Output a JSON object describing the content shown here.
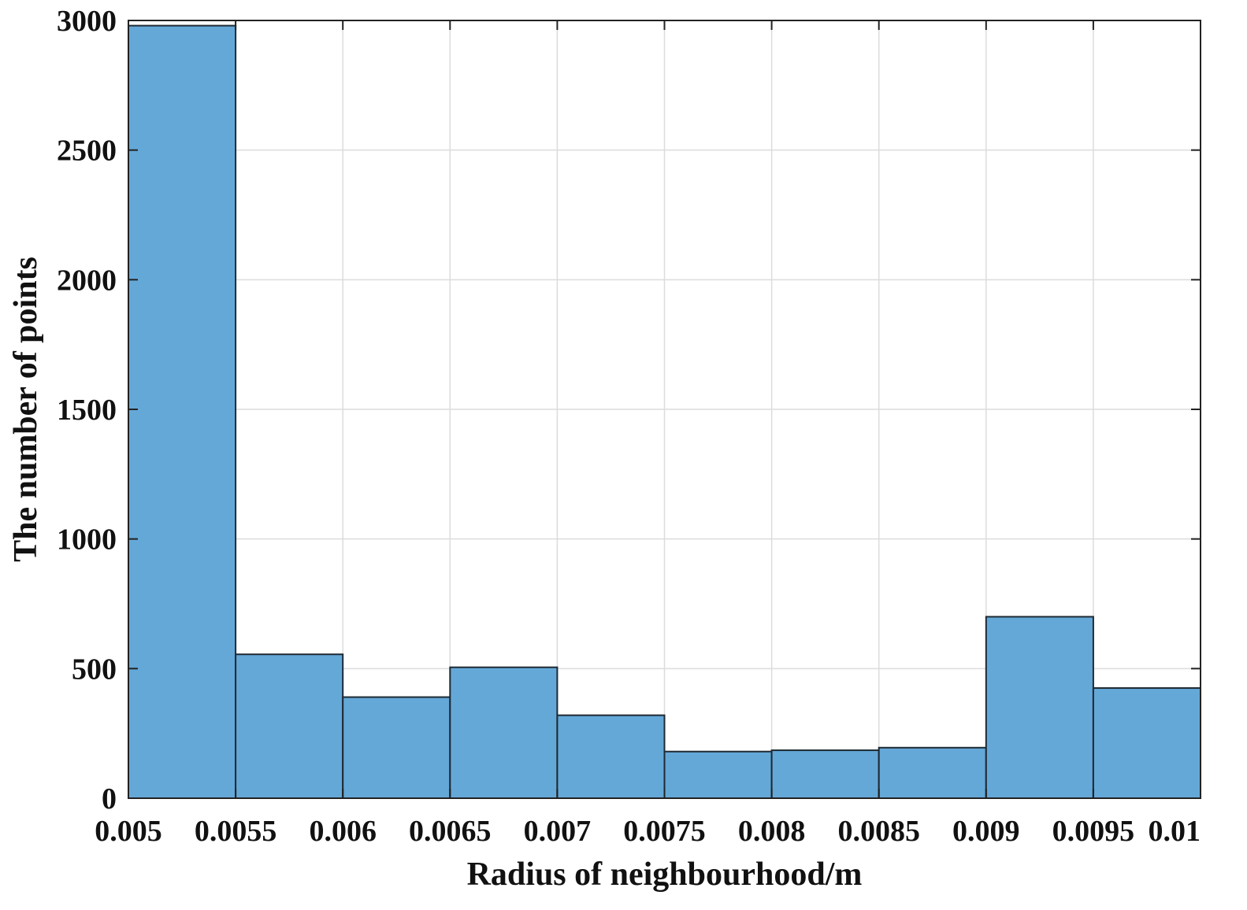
{
  "chart_data": {
    "type": "bar",
    "histogram": true,
    "xlabel": "Radius of neighbourhood/m",
    "ylabel": "The number of points",
    "xlim": [
      0.005,
      0.01
    ],
    "ylim": [
      0,
      3000
    ],
    "bin_edges": [
      0.005,
      0.0055,
      0.006,
      0.0065,
      0.007,
      0.0075,
      0.008,
      0.0085,
      0.009,
      0.0095,
      0.01
    ],
    "values": [
      2980,
      555,
      390,
      505,
      320,
      180,
      185,
      195,
      700,
      425
    ],
    "x_ticks": [
      0.005,
      0.0055,
      0.006,
      0.0065,
      0.007,
      0.0075,
      0.008,
      0.0085,
      0.009,
      0.0095,
      0.01
    ],
    "x_tick_labels": [
      "0.005",
      "0.0055",
      "0.006",
      "0.0065",
      "0.007",
      "0.0075",
      "0.008",
      "0.0085",
      "0.009",
      "0.0095",
      "0.01"
    ],
    "y_ticks": [
      0,
      500,
      1000,
      1500,
      2000,
      2500,
      3000
    ],
    "y_tick_labels": [
      "0",
      "500",
      "1000",
      "1500",
      "2000",
      "2500",
      "3000"
    ],
    "grid": true,
    "bar_color": "#64a8d8",
    "edge_color": "#1f2a33"
  }
}
